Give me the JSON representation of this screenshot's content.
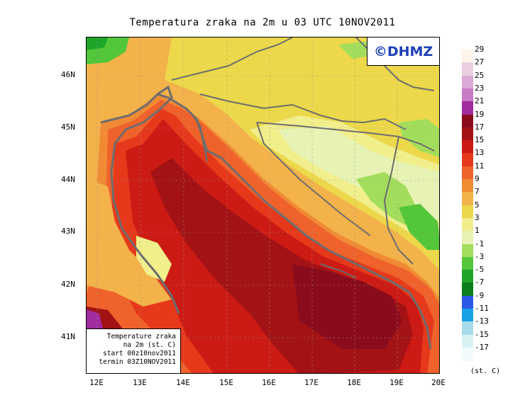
{
  "title": "Temperatura zraka na 2m u 03 UTC 10NOV2011",
  "logo_text": "©DHMZ",
  "info_box": {
    "line1": "Temperature zraka",
    "line2": "na 2m (st. C)",
    "line3": "start 00z10nov2011",
    "line4": "termin 03Z10NOV2011"
  },
  "lat_ticks": [
    "46N",
    "45N",
    "44N",
    "43N",
    "42N",
    "41N"
  ],
  "lon_ticks": [
    "12E",
    "13E",
    "14E",
    "15E",
    "16E",
    "17E",
    "18E",
    "19E",
    "20E"
  ],
  "legend": {
    "unit": "(st. C)",
    "levels": [
      {
        "label": "29",
        "color": "#fff4ea"
      },
      {
        "label": "27",
        "color": "#e9cfe0"
      },
      {
        "label": "25",
        "color": "#dba9d6"
      },
      {
        "label": "23",
        "color": "#c97ac6"
      },
      {
        "label": "21",
        "color": "#a12ba0"
      },
      {
        "label": "19",
        "color": "#8a0c1c"
      },
      {
        "label": "17",
        "color": "#a31214"
      },
      {
        "label": "15",
        "color": "#cc1b14"
      },
      {
        "label": "13",
        "color": "#e6391b"
      },
      {
        "label": "11",
        "color": "#f0622b"
      },
      {
        "label": "9",
        "color": "#f08b34"
      },
      {
        "label": "7",
        "color": "#f3b24a"
      },
      {
        "label": "5",
        "color": "#ecd84a"
      },
      {
        "label": "3",
        "color": "#f1ee8c"
      },
      {
        "label": "1",
        "color": "#e6f3b4"
      },
      {
        "label": "-1",
        "color": "#a3dd5c"
      },
      {
        "label": "-3",
        "color": "#53c63a"
      },
      {
        "label": "-5",
        "color": "#1ea629"
      },
      {
        "label": "-7",
        "color": "#0d7e1e"
      },
      {
        "label": "-9",
        "color": "#2d57e6"
      },
      {
        "label": "-11",
        "color": "#17a2e8"
      },
      {
        "label": "-13",
        "color": "#a8dbe9"
      },
      {
        "label": "-15",
        "color": "#d8f2f4"
      },
      {
        "label": "-17",
        "color": "#f2fbfb"
      }
    ]
  }
}
